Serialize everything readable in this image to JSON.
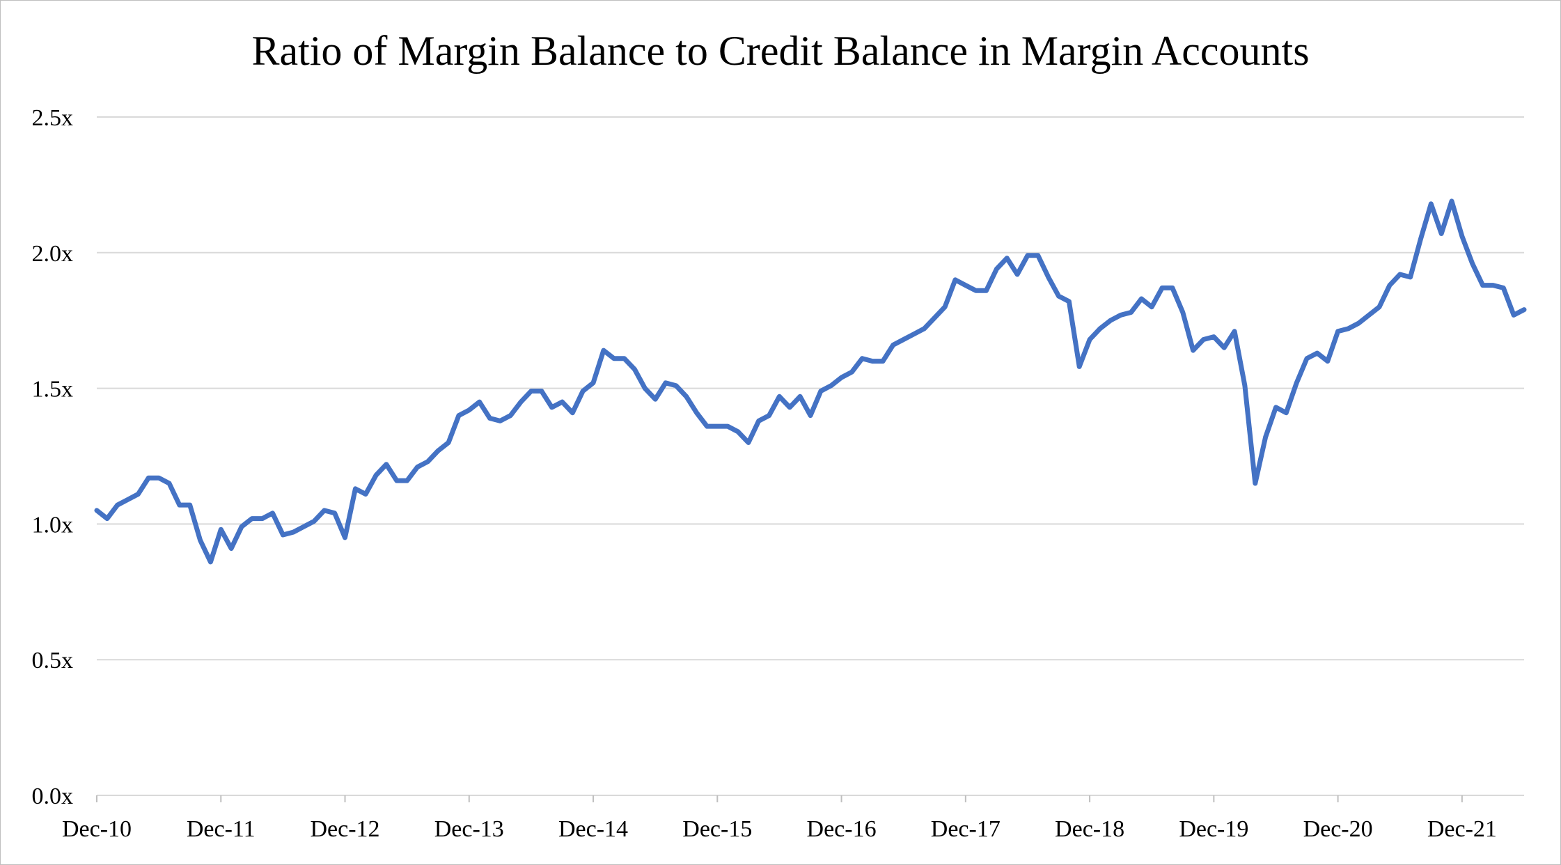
{
  "chart_data": {
    "type": "line",
    "title": "Ratio of Margin Balance to Credit Balance in Margin Accounts",
    "xlabel": "",
    "ylabel": "",
    "ylim": [
      0,
      2.5
    ],
    "y_ticks": [
      "0.0x",
      "0.5x",
      "1.0x",
      "1.5x",
      "2.0x",
      "2.5x"
    ],
    "y_tick_values": [
      0,
      0.5,
      1.0,
      1.5,
      2.0,
      2.5
    ],
    "x_ticks": [
      "Dec-10",
      "Dec-11",
      "Dec-12",
      "Dec-13",
      "Dec-14",
      "Dec-15",
      "Dec-16",
      "Dec-17",
      "Dec-18",
      "Dec-19",
      "Dec-20",
      "Dec-21"
    ],
    "x_range": [
      "Dec-10",
      "Jun-22"
    ],
    "grid": true,
    "legend": "none",
    "series": [
      {
        "color": "#4472C4",
        "x": [
          "Dec-10",
          "Jan-11",
          "Feb-11",
          "Mar-11",
          "Apr-11",
          "May-11",
          "Jun-11",
          "Jul-11",
          "Aug-11",
          "Sep-11",
          "Oct-11",
          "Nov-11",
          "Dec-11",
          "Jan-12",
          "Feb-12",
          "Mar-12",
          "Apr-12",
          "May-12",
          "Jun-12",
          "Jul-12",
          "Aug-12",
          "Sep-12",
          "Oct-12",
          "Nov-12",
          "Dec-12",
          "Jan-13",
          "Feb-13",
          "Mar-13",
          "Apr-13",
          "May-13",
          "Jun-13",
          "Jul-13",
          "Aug-13",
          "Sep-13",
          "Oct-13",
          "Nov-13",
          "Dec-13",
          "Jan-14",
          "Feb-14",
          "Mar-14",
          "Apr-14",
          "May-14",
          "Jun-14",
          "Jul-14",
          "Aug-14",
          "Sep-14",
          "Oct-14",
          "Nov-14",
          "Dec-14",
          "Jan-15",
          "Feb-15",
          "Mar-15",
          "Apr-15",
          "May-15",
          "Jun-15",
          "Jul-15",
          "Aug-15",
          "Sep-15",
          "Oct-15",
          "Nov-15",
          "Dec-15",
          "Jan-16",
          "Feb-16",
          "Mar-16",
          "Apr-16",
          "May-16",
          "Jun-16",
          "Jul-16",
          "Aug-16",
          "Sep-16",
          "Oct-16",
          "Nov-16",
          "Dec-16",
          "Jan-17",
          "Feb-17",
          "Mar-17",
          "Apr-17",
          "May-17",
          "Jun-17",
          "Jul-17",
          "Aug-17",
          "Sep-17",
          "Oct-17",
          "Nov-17",
          "Dec-17",
          "Jan-18",
          "Feb-18",
          "Mar-18",
          "Apr-18",
          "May-18",
          "Jun-18",
          "Jul-18",
          "Aug-18",
          "Sep-18",
          "Oct-18",
          "Nov-18",
          "Dec-18",
          "Jan-19",
          "Feb-19",
          "Mar-19",
          "Apr-19",
          "May-19",
          "Jun-19",
          "Jul-19",
          "Aug-19",
          "Sep-19",
          "Oct-19",
          "Nov-19",
          "Dec-19",
          "Jan-20",
          "Feb-20",
          "Mar-20",
          "Apr-20",
          "May-20",
          "Jun-20",
          "Jul-20",
          "Aug-20",
          "Sep-20",
          "Oct-20",
          "Nov-20",
          "Dec-20",
          "Jan-21",
          "Feb-21",
          "Mar-21",
          "Apr-21",
          "May-21",
          "Jun-21",
          "Jul-21",
          "Aug-21",
          "Sep-21",
          "Oct-21",
          "Nov-21",
          "Dec-21",
          "Jan-22",
          "Feb-22",
          "Mar-22",
          "Apr-22",
          "May-22",
          "Jun-22"
        ],
        "y": [
          1.05,
          1.02,
          1.07,
          1.09,
          1.11,
          1.17,
          1.17,
          1.15,
          1.07,
          1.07,
          0.94,
          0.86,
          0.98,
          0.91,
          0.99,
          1.02,
          1.02,
          1.04,
          0.96,
          0.97,
          0.99,
          1.01,
          1.05,
          1.04,
          0.95,
          1.13,
          1.11,
          1.18,
          1.22,
          1.16,
          1.16,
          1.21,
          1.23,
          1.27,
          1.3,
          1.4,
          1.42,
          1.45,
          1.39,
          1.38,
          1.4,
          1.45,
          1.49,
          1.49,
          1.43,
          1.45,
          1.41,
          1.49,
          1.52,
          1.64,
          1.61,
          1.61,
          1.57,
          1.5,
          1.46,
          1.52,
          1.51,
          1.47,
          1.41,
          1.36,
          1.36,
          1.36,
          1.34,
          1.3,
          1.38,
          1.4,
          1.47,
          1.43,
          1.47,
          1.4,
          1.49,
          1.51,
          1.54,
          1.56,
          1.61,
          1.6,
          1.6,
          1.66,
          1.68,
          1.7,
          1.72,
          1.76,
          1.8,
          1.9,
          1.88,
          1.86,
          1.86,
          1.94,
          1.98,
          1.92,
          1.99,
          1.99,
          1.91,
          1.84,
          1.82,
          1.58,
          1.68,
          1.72,
          1.75,
          1.77,
          1.78,
          1.83,
          1.8,
          1.87,
          1.87,
          1.78,
          1.64,
          1.68,
          1.69,
          1.65,
          1.71,
          1.51,
          1.15,
          1.32,
          1.43,
          1.41,
          1.52,
          1.61,
          1.63,
          1.6,
          1.71,
          1.72,
          1.74,
          1.77,
          1.8,
          1.88,
          1.92,
          1.91,
          2.05,
          2.18,
          2.07,
          2.19,
          2.06,
          1.96,
          1.88,
          1.88,
          1.87,
          1.77,
          1.79
        ]
      }
    ]
  }
}
